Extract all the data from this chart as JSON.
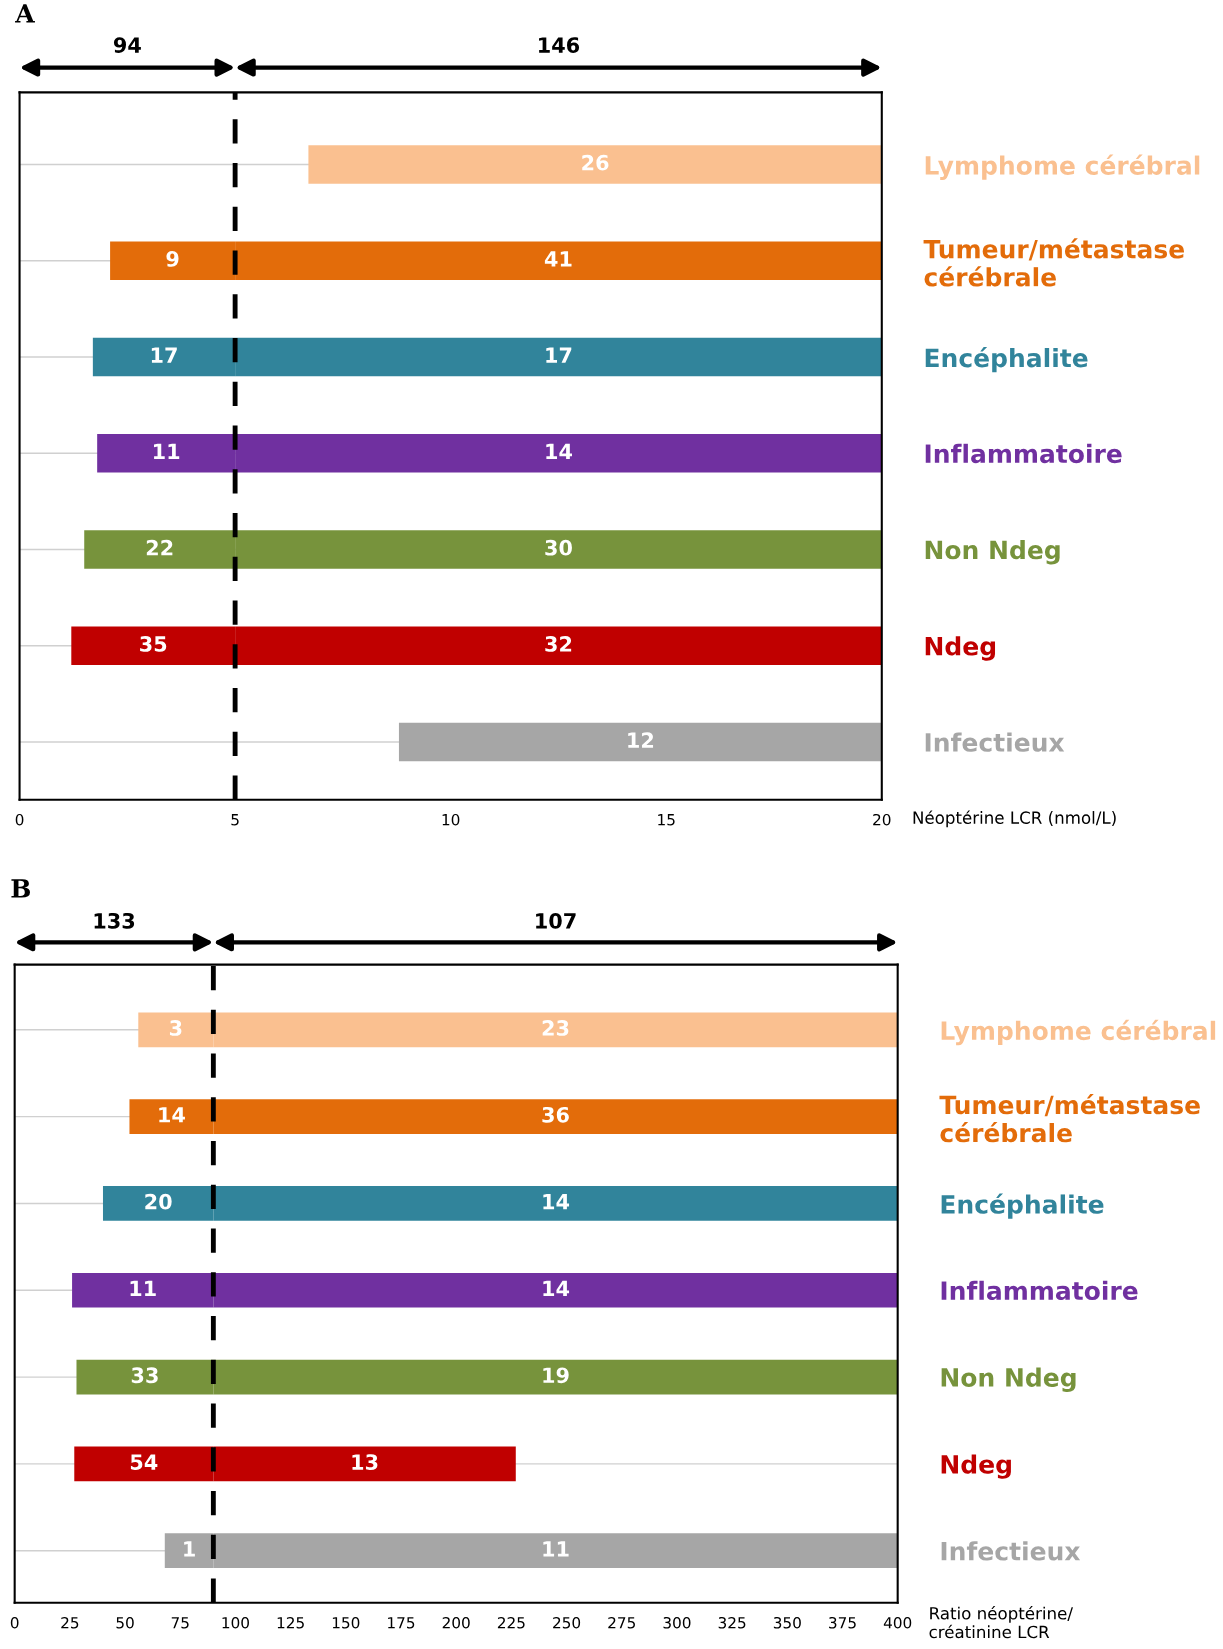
{
  "chart_data": [
    {
      "type": "bar",
      "orientation": "horizontal",
      "title": "A",
      "xlabel": "Néoptérine LCR (nmol/L)",
      "categories": [
        "Lymphome cérébral",
        "Tumeur/métastase\ncérébrale",
        "Encéphalite",
        "Inflammatoire",
        "Non Ndeg",
        "Ndeg",
        "Infectieux"
      ],
      "series": [
        {
          "colors": [
            "#fac090",
            "#e36c0a",
            "#31849b",
            "#7030a0",
            "#77933c",
            "#c00000",
            "#a6a6a6"
          ],
          "base": [
            null,
            2.1,
            1.7,
            1.8,
            1.5,
            1.2,
            null
          ],
          "values": [
            null,
            2.9,
            3.3,
            3.2,
            3.5,
            3.8,
            null
          ]
        },
        {
          "colors": [
            "#fac090",
            "#e36c0a",
            "#31849b",
            "#7030a0",
            "#77933c",
            "#c00000",
            "#a6a6a6"
          ],
          "base": [
            6.7,
            5,
            5,
            5,
            5,
            5,
            8.8
          ],
          "values": [
            13.3,
            15,
            15,
            15,
            15,
            15,
            11.2
          ]
        }
      ],
      "xlim": [
        0,
        20
      ],
      "xticks": [
        0,
        5,
        10,
        15,
        20
      ],
      "ref_lines": [
        {
          "axis": "x",
          "value": 5,
          "color": "#000000",
          "line_style": "dashed"
        }
      ],
      "annotations": [
        "94",
        "146",
        "26",
        "9",
        "41",
        "17",
        "17",
        "11",
        "14",
        "22",
        "30",
        "35",
        "32",
        "12"
      ],
      "grid": "y"
    },
    {
      "type": "bar",
      "orientation": "horizontal",
      "title": "B",
      "xlabel": "Ratio néoptérine/\ncréatinine LCR",
      "categories": [
        "Lymphome cérébral",
        "Tumeur/métastase\ncérébrale",
        "Encéphalite",
        "Inflammatoire",
        "Non Ndeg",
        "Ndeg",
        "Infectieux"
      ],
      "series": [
        {
          "colors": [
            "#fac090",
            "#e36c0a",
            "#31849b",
            "#7030a0",
            "#77933c",
            "#c00000",
            "#a6a6a6"
          ],
          "base": [
            56,
            52,
            40,
            26,
            28,
            27,
            68
          ],
          "values": [
            34,
            38,
            50,
            64,
            62,
            63,
            22
          ]
        },
        {
          "colors": [
            "#fac090",
            "#e36c0a",
            "#31849b",
            "#7030a0",
            "#77933c",
            "#c00000",
            "#a6a6a6"
          ],
          "base": [
            90,
            90,
            90,
            90,
            90,
            90,
            90
          ],
          "values": [
            310,
            310,
            310,
            310,
            310,
            137,
            310
          ]
        }
      ],
      "xlim": [
        0,
        400
      ],
      "xticks": [
        0,
        25,
        50,
        75,
        100,
        125,
        150,
        175,
        200,
        225,
        250,
        275,
        300,
        325,
        350,
        375,
        400
      ],
      "ref_lines": [
        {
          "axis": "x",
          "value": 90,
          "color": "#000000",
          "line_style": "dashed"
        }
      ],
      "annotations": [
        "133",
        "107",
        "3",
        "23",
        "14",
        "36",
        "20",
        "14",
        "11",
        "14",
        "33",
        "19",
        "54",
        "13",
        "1",
        "11"
      ],
      "grid": "y"
    }
  ]
}
